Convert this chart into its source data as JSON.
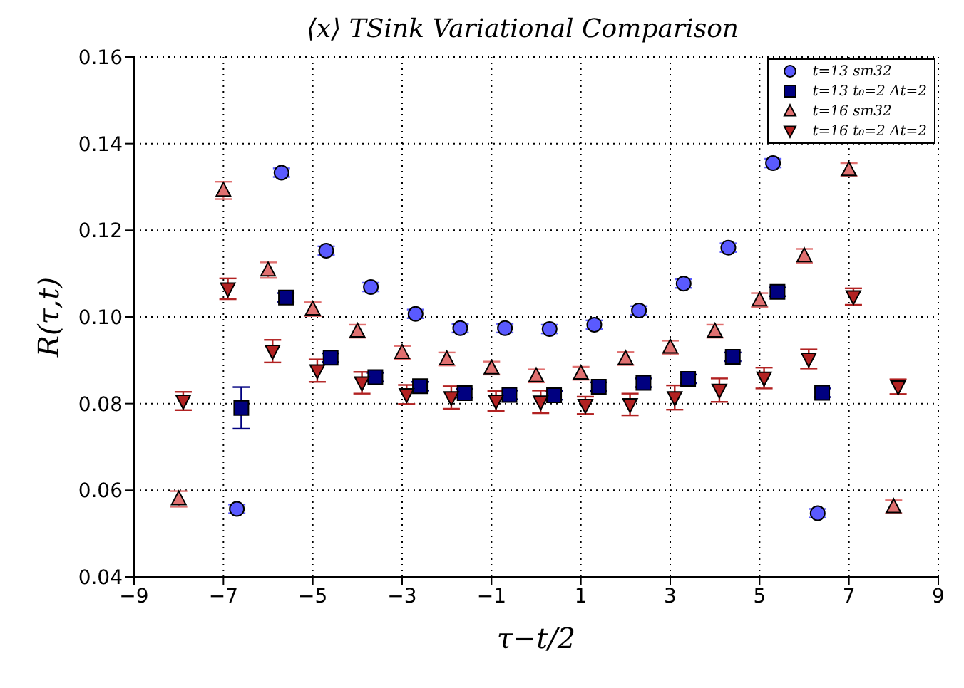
{
  "chart_data": {
    "type": "scatter",
    "title": "⟨x⟩ TSink Variational Comparison",
    "xlabel": "τ−t/2",
    "ylabel": "R(τ,t)",
    "xlim": [
      -9,
      9
    ],
    "xticks": [
      {
        "value": -9,
        "label": "−9"
      },
      {
        "value": -7,
        "label": "−7"
      },
      {
        "value": -5,
        "label": "−5"
      },
      {
        "value": -3,
        "label": "−3"
      },
      {
        "value": -1,
        "label": "−1"
      },
      1,
      3,
      5,
      7,
      9
    ],
    "ylim": [
      0.04,
      0.16
    ],
    "yticks": [
      {
        "value": 0.04,
        "label": "0.04"
      },
      {
        "value": 0.06,
        "label": "0.06"
      },
      {
        "value": 0.08,
        "label": "0.08"
      },
      {
        "value": 0.1,
        "label": "0.10"
      },
      {
        "value": 0.12,
        "label": "0.12"
      },
      {
        "value": 0.14,
        "label": "0.14"
      },
      {
        "value": 0.16,
        "label": "0.16"
      }
    ],
    "grid": true,
    "legend": "top right",
    "series": [
      {
        "name": "t=13 sm32",
        "color": "#5a5aff",
        "marker": "circle",
        "x": [
          -6.7,
          -5.7,
          -4.7,
          -3.7,
          -2.7,
          -1.7,
          -0.7,
          0.3,
          1.3,
          2.3,
          3.3,
          4.3,
          5.3,
          6.3
        ],
        "values": [
          0.0557,
          0.1333,
          0.1153,
          0.1069,
          0.1007,
          0.0974,
          0.0974,
          0.0972,
          0.0982,
          0.1015,
          0.1077,
          0.116,
          0.1355,
          0.0547
        ],
        "errors": [
          0.001,
          0.001,
          0.001,
          0.001,
          0.001,
          0.001,
          0.001,
          0.001,
          0.001,
          0.001,
          0.001,
          0.001,
          0.001,
          0.001
        ]
      },
      {
        "name": "t=13 t₀=2 Δt=2",
        "color": "#000080",
        "marker": "square",
        "x": [
          -6.6,
          -5.6,
          -4.6,
          -3.6,
          -2.6,
          -1.6,
          -0.6,
          0.4,
          1.4,
          2.4,
          3.4,
          4.4,
          5.4,
          6.4
        ],
        "values": [
          0.079,
          0.1045,
          0.0906,
          0.0861,
          0.084,
          0.0824,
          0.082,
          0.0819,
          0.0839,
          0.0848,
          0.0857,
          0.0908,
          0.1058,
          0.0825
        ],
        "errors": [
          0.0048,
          0.001,
          0.001,
          0.001,
          0.001,
          0.001,
          0.001,
          0.001,
          0.001,
          0.001,
          0.001,
          0.001,
          0.001,
          0.001
        ]
      },
      {
        "name": "t=16 sm32",
        "color": "#e07070",
        "marker": "triangle",
        "x": [
          -8,
          -7,
          -6,
          -5,
          -4,
          -3,
          -2,
          -1,
          0,
          1,
          2,
          3,
          4,
          5,
          6,
          7,
          8
        ],
        "values": [
          0.058,
          0.1292,
          0.1108,
          0.1018,
          0.0967,
          0.0918,
          0.0903,
          0.0882,
          0.0864,
          0.087,
          0.0904,
          0.093,
          0.0967,
          0.1039,
          0.1141,
          0.134,
          0.0562
        ],
        "errors": [
          0.0018,
          0.002,
          0.0018,
          0.0016,
          0.0015,
          0.0015,
          0.0015,
          0.0015,
          0.0015,
          0.0015,
          0.0015,
          0.0015,
          0.0015,
          0.0016,
          0.0016,
          0.0015,
          0.0015
        ]
      },
      {
        "name": "t=16 t₀=2 Δt=2",
        "color": "#b22222",
        "marker": "triangle-down",
        "x": [
          -7.9,
          -6.9,
          -5.9,
          -4.9,
          -3.9,
          -2.9,
          -1.9,
          -0.9,
          0.1,
          1.1,
          2.1,
          3.1,
          4.1,
          5.1,
          6.1,
          7.1,
          8.1
        ],
        "values": [
          0.0806,
          0.1065,
          0.0921,
          0.0876,
          0.0848,
          0.0821,
          0.0814,
          0.0806,
          0.0804,
          0.0796,
          0.0798,
          0.0814,
          0.0831,
          0.0859,
          0.0903,
          0.1047,
          0.0839
        ],
        "errors": [
          0.0021,
          0.0024,
          0.0026,
          0.0026,
          0.0025,
          0.0022,
          0.0026,
          0.0023,
          0.0026,
          0.002,
          0.0025,
          0.0028,
          0.0027,
          0.0024,
          0.0022,
          0.0019,
          0.0017
        ]
      }
    ]
  }
}
